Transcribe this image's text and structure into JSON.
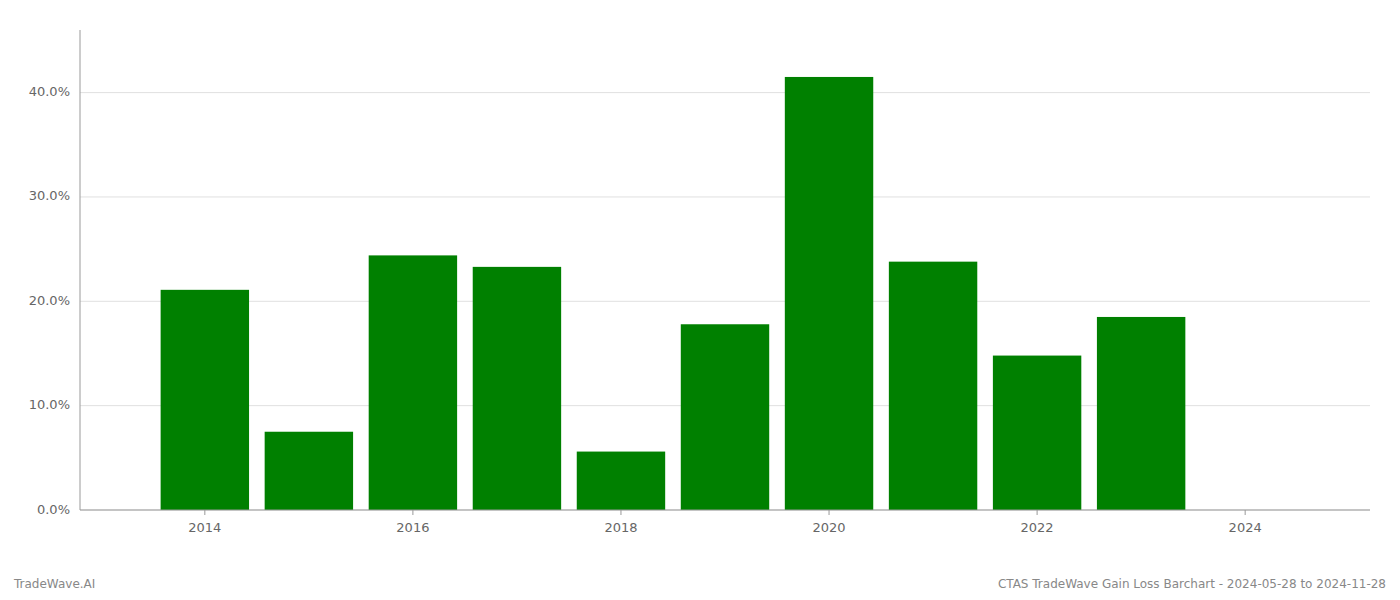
{
  "chart_data": {
    "type": "bar",
    "x": [
      2014,
      2015,
      2016,
      2017,
      2018,
      2019,
      2020,
      2021,
      2022,
      2023
    ],
    "values": [
      0.211,
      0.075,
      0.244,
      0.233,
      0.056,
      0.178,
      0.415,
      0.238,
      0.148,
      0.185
    ],
    "color": "#008000",
    "xlim": [
      2012.8,
      2025.2
    ],
    "xticks": [
      2014,
      2016,
      2018,
      2020,
      2022,
      2024
    ],
    "ylim": [
      0,
      0.46
    ],
    "yticks": [
      {
        "value": 0.0,
        "label": "0.0%"
      },
      {
        "value": 0.1,
        "label": "10.0%"
      },
      {
        "value": 0.2,
        "label": "20.0%"
      },
      {
        "value": 0.3,
        "label": "30.0%"
      },
      {
        "value": 0.4,
        "label": "40.0%"
      }
    ],
    "grid": true,
    "annotations": [
      "TradeWave.AI",
      "CTAS TradeWave Gain Loss Barchart - 2024-05-28 to 2024-11-28"
    ]
  }
}
